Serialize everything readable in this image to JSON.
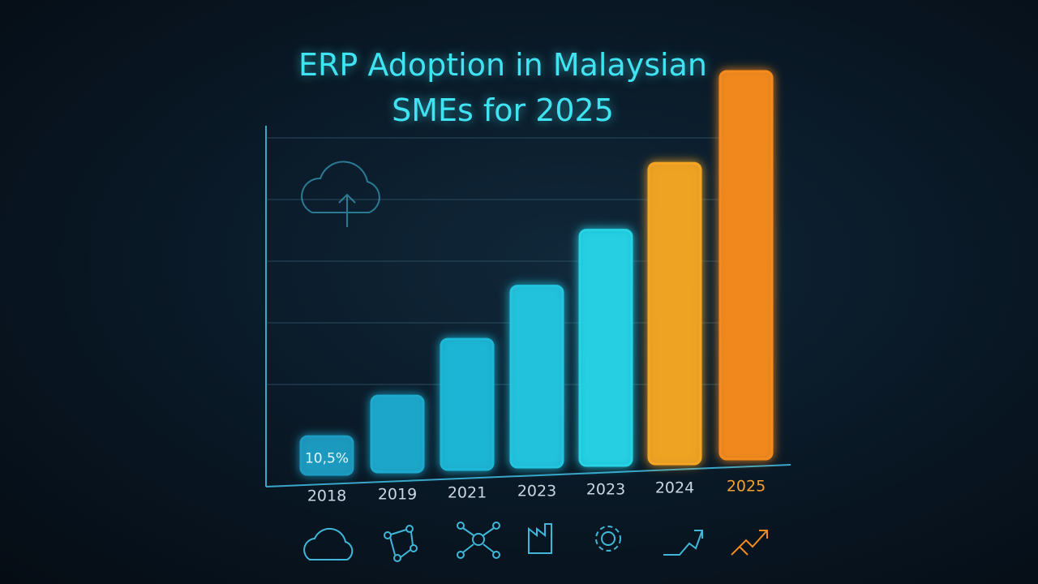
{
  "chart_data": {
    "type": "bar",
    "title": "ERP Adoption in Malaysian SMEs for 2025",
    "categories": [
      "2018",
      "2019",
      "2021",
      "2023",
      "2023",
      "2024",
      "2025"
    ],
    "values": [
      10.5,
      21,
      36,
      50,
      65,
      83,
      107
    ],
    "value_labels": [
      "10,5%",
      null,
      null,
      null,
      null,
      null,
      null
    ],
    "colors": [
      "#1d9cc2",
      "#1eaace",
      "#1fb8d8",
      "#22c6e0",
      "#25d4e6",
      "#f5a623",
      "#f68b1f"
    ]
  }
}
